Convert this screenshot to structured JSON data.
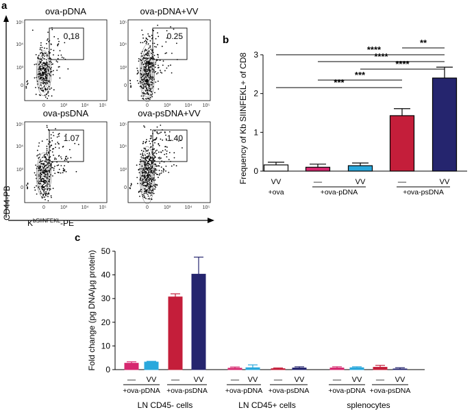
{
  "panels": {
    "a": {
      "letter": "a",
      "x_axis_label": "K",
      "x_axis_label_sup": "bSIINFEKL",
      "x_axis_label_suffix": "-PE",
      "y_axis_label": "CD44-PB",
      "tick_labels_y": [
        "10⁵",
        "10⁴",
        "10³",
        "0"
      ],
      "tick_labels_x": [
        "0",
        "10³",
        "10⁴",
        "10⁵"
      ],
      "plots": [
        {
          "title": "ova-pDNA",
          "gate_value": "0.18",
          "gate_percent": 0.18
        },
        {
          "title": "ova-pDNA+VV",
          "gate_value": "0.25",
          "gate_percent": 0.25
        },
        {
          "title": "ova-psDNA",
          "gate_value": "1.07",
          "gate_percent": 1.07
        },
        {
          "title": "ova-psDNA+VV",
          "gate_value": "1.40",
          "gate_percent": 1.4
        }
      ]
    },
    "b": {
      "letter": "b"
    },
    "c": {
      "letter": "c"
    }
  },
  "colors": {
    "white": "#ffffff",
    "magenta": "#d6286f",
    "cyan": "#2aa8dc",
    "red": "#c41e3a",
    "navy": "#25256e"
  },
  "chart_data": [
    {
      "id": "b",
      "type": "bar",
      "ylabel": "Frequency of Kb SIINFEKL+ of CD8",
      "ylim": [
        0,
        3
      ],
      "yticks": [
        0,
        1,
        2,
        3
      ],
      "categories": [
        "VV",
        "––",
        "VV",
        "––",
        "VV"
      ],
      "groups": [
        {
          "label": "+ova",
          "members": [
            0
          ]
        },
        {
          "label": "+ova-pDNA",
          "members": [
            1,
            2
          ]
        },
        {
          "label": "+ova-psDNA",
          "members": [
            3,
            4
          ]
        }
      ],
      "values": [
        0.16,
        0.1,
        0.14,
        1.43,
        2.4
      ],
      "errors": [
        0.07,
        0.08,
        0.07,
        0.18,
        0.28
      ],
      "bar_colors": [
        "white",
        "magenta",
        "cyan",
        "red",
        "navy"
      ],
      "significance": [
        {
          "from": 0,
          "to": 4,
          "label": "****"
        },
        {
          "from": 3,
          "to": 4,
          "label": "**"
        },
        {
          "from": 1,
          "to": 4,
          "label": "****"
        },
        {
          "from": 2,
          "to": 4,
          "label": "****"
        },
        {
          "from": 1,
          "to": 3,
          "label": "***"
        },
        {
          "from": 0,
          "to": 3,
          "label": "***"
        }
      ]
    },
    {
      "id": "c",
      "type": "bar",
      "ylabel": "Fold change (pg DNA/μg protein)",
      "ylim": [
        0,
        50
      ],
      "yticks": [
        0,
        10,
        20,
        30,
        40,
        50
      ],
      "sections": [
        {
          "label": "LN CD45- cells",
          "subgroups": [
            {
              "label": "+ova-pDNA",
              "bars": [
                {
                  "label": "––",
                  "value": 2.7,
                  "error": 0.6,
                  "color": "magenta"
                },
                {
                  "label": "VV",
                  "value": 3.2,
                  "error": 0.3,
                  "color": "cyan"
                }
              ]
            },
            {
              "label": "+ova-psDNA",
              "bars": [
                {
                  "label": "––",
                  "value": 30.7,
                  "error": 1.3,
                  "color": "red"
                },
                {
                  "label": "VV",
                  "value": 40.3,
                  "error": 7.2,
                  "color": "navy"
                }
              ]
            }
          ]
        },
        {
          "label": "LN CD45+ cells",
          "subgroups": [
            {
              "label": "+ova-pDNA",
              "bars": [
                {
                  "label": "––",
                  "value": 0.6,
                  "error": 0.5,
                  "color": "magenta"
                },
                {
                  "label": "VV",
                  "value": 0.8,
                  "error": 1.2,
                  "color": "cyan"
                }
              ]
            },
            {
              "label": "+ova-psDNA",
              "bars": [
                {
                  "label": "––",
                  "value": 0.4,
                  "error": 0.3,
                  "color": "red"
                },
                {
                  "label": "VV",
                  "value": 0.7,
                  "error": 0.5,
                  "color": "navy"
                }
              ]
            }
          ]
        },
        {
          "label": "splenocytes",
          "subgroups": [
            {
              "label": "+ova-pDNA",
              "bars": [
                {
                  "label": "––",
                  "value": 0.7,
                  "error": 0.5,
                  "color": "magenta"
                },
                {
                  "label": "VV",
                  "value": 0.8,
                  "error": 0.4,
                  "color": "cyan"
                }
              ]
            },
            {
              "label": "+ova-psDNA",
              "bars": [
                {
                  "label": "––",
                  "value": 1.0,
                  "error": 0.8,
                  "color": "red"
                },
                {
                  "label": "VV",
                  "value": 0.3,
                  "error": 0.5,
                  "color": "navy"
                }
              ]
            }
          ]
        }
      ]
    }
  ]
}
